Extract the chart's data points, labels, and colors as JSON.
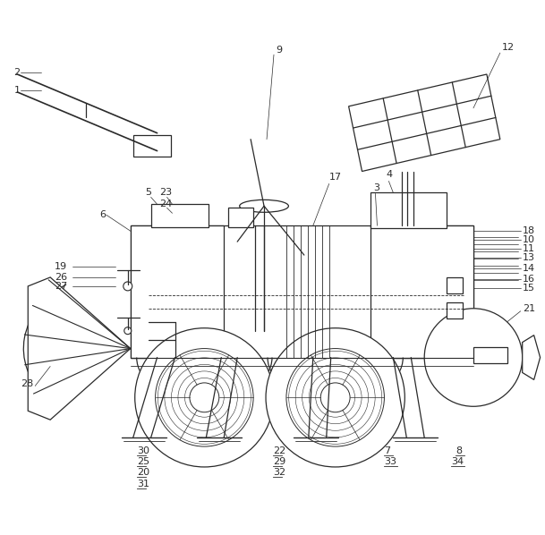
{
  "bg_color": "#ffffff",
  "line_color": "#2a2a2a",
  "label_color": "#1a1a1a",
  "fig_width": 6.09,
  "fig_height": 5.98,
  "dpi": 100
}
